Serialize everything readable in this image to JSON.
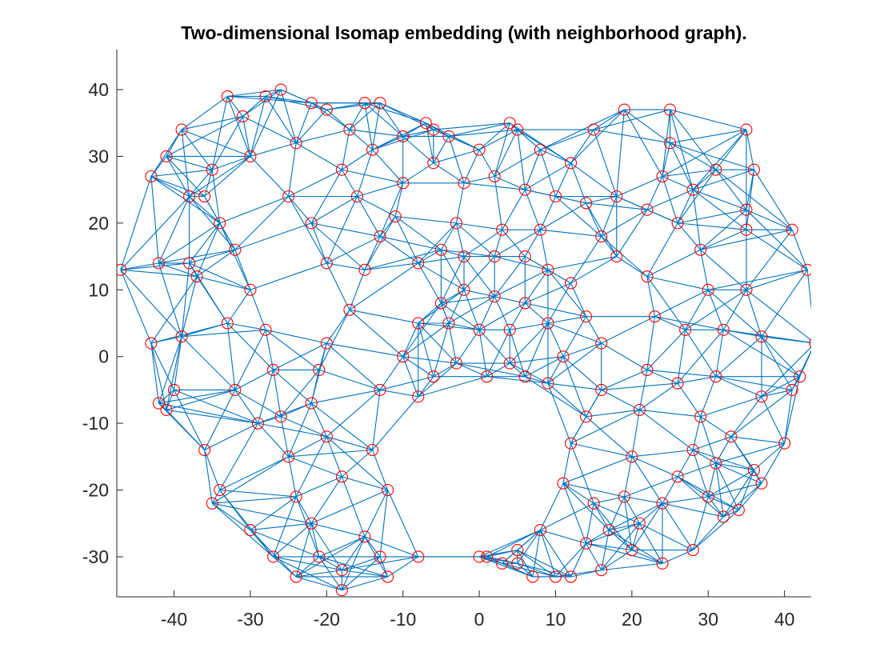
{
  "chart_data": {
    "type": "scatter",
    "title": "Two-dimensional Isomap embedding (with neighborhood graph).",
    "xlim": [
      -47.5,
      43.5
    ],
    "ylim": [
      -36,
      46
    ],
    "x_ticks": [
      -40,
      -30,
      -20,
      -10,
      0,
      10,
      20,
      30,
      40
    ],
    "y_ticks": [
      -30,
      -20,
      -10,
      0,
      10,
      20,
      30,
      40
    ],
    "x_tick_labels": [
      "-40",
      "-30",
      "-20",
      "-10",
      "0",
      "10",
      "20",
      "30",
      "40"
    ],
    "y_tick_labels": [
      "-30",
      "-20",
      "-10",
      "0",
      "10",
      "20",
      "30",
      "40"
    ],
    "grid": false,
    "marker": "open-circle",
    "colors": {
      "points": "#ff0000",
      "edges": "#0072bd",
      "axes": "#262626"
    },
    "neighbors_k": 7,
    "series": [
      {
        "points": [
          [
            -47,
            13
          ],
          [
            -43,
            2
          ],
          [
            -42,
            14
          ],
          [
            -42,
            -7
          ],
          [
            -41,
            -8
          ],
          [
            -40,
            -5
          ],
          [
            -39,
            34
          ],
          [
            -41,
            30
          ],
          [
            -43,
            27
          ],
          [
            -38,
            24
          ],
          [
            -36,
            24
          ],
          [
            -34,
            20
          ],
          [
            -38,
            14
          ],
          [
            -37,
            12
          ],
          [
            -39,
            3
          ],
          [
            -36,
            -14
          ],
          [
            -35,
            -22
          ],
          [
            -34,
            -20
          ],
          [
            -33,
            39
          ],
          [
            -31,
            36
          ],
          [
            -28,
            39
          ],
          [
            -26,
            40
          ],
          [
            -22,
            38
          ],
          [
            -20,
            37
          ],
          [
            -15,
            38
          ],
          [
            -13,
            38
          ],
          [
            -7,
            35
          ],
          [
            -6,
            34
          ],
          [
            4,
            35
          ],
          [
            5,
            34
          ],
          [
            15,
            34
          ],
          [
            19,
            37
          ],
          [
            25,
            37
          ],
          [
            25,
            32
          ],
          [
            35,
            34
          ],
          [
            36,
            28
          ],
          [
            35,
            22
          ],
          [
            35,
            19
          ],
          [
            41,
            19
          ],
          [
            43,
            13
          ],
          [
            44,
            2
          ],
          [
            42,
            -3
          ],
          [
            41,
            -5
          ],
          [
            40,
            -13
          ],
          [
            37,
            -19
          ],
          [
            36,
            -17
          ],
          [
            34,
            -23
          ],
          [
            32,
            -24
          ],
          [
            30,
            -21
          ],
          [
            28,
            -29
          ],
          [
            24,
            -31
          ],
          [
            20,
            -29
          ],
          [
            16,
            -32
          ],
          [
            12,
            -33
          ],
          [
            10,
            -33
          ],
          [
            7,
            -33
          ],
          [
            5,
            -31
          ],
          [
            3,
            -31
          ],
          [
            1,
            -30
          ],
          [
            0,
            -30
          ],
          [
            -8,
            -30
          ],
          [
            -12,
            -33
          ],
          [
            -13,
            -30
          ],
          [
            -18,
            -35
          ],
          [
            -18,
            -32
          ],
          [
            -21,
            -30
          ],
          [
            -24,
            -33
          ],
          [
            -27,
            -30
          ],
          [
            -30,
            -26
          ],
          [
            -15,
            -27
          ],
          [
            -18,
            -18
          ],
          [
            -20,
            -12
          ],
          [
            -22,
            -7
          ],
          [
            -21,
            -2
          ],
          [
            -20,
            2
          ],
          [
            -17,
            7
          ],
          [
            -15,
            13
          ],
          [
            -13,
            18
          ],
          [
            -11,
            21
          ],
          [
            -8,
            14
          ],
          [
            -5,
            16
          ],
          [
            -2,
            15
          ],
          [
            2,
            15
          ],
          [
            6,
            15
          ],
          [
            9,
            13
          ],
          [
            12,
            11
          ],
          [
            14,
            6
          ],
          [
            16,
            2
          ],
          [
            16,
            -5
          ],
          [
            14,
            -9
          ],
          [
            12,
            -13
          ],
          [
            11,
            -19
          ],
          [
            15,
            -22
          ],
          [
            17,
            -26
          ],
          [
            8,
            -26
          ],
          [
            5,
            -29
          ],
          [
            -25,
            24
          ],
          [
            -22,
            20
          ],
          [
            -18,
            28
          ],
          [
            -14,
            31
          ],
          [
            -10,
            26
          ],
          [
            -6,
            29
          ],
          [
            -2,
            26
          ],
          [
            2,
            27
          ],
          [
            6,
            25
          ],
          [
            10,
            24
          ],
          [
            14,
            23
          ],
          [
            18,
            24
          ],
          [
            22,
            22
          ],
          [
            26,
            20
          ],
          [
            29,
            16
          ],
          [
            30,
            10
          ],
          [
            32,
            4
          ],
          [
            31,
            -3
          ],
          [
            29,
            -9
          ],
          [
            28,
            -14
          ],
          [
            26,
            -18
          ],
          [
            24,
            -22
          ],
          [
            21,
            -25
          ],
          [
            19,
            -21
          ],
          [
            20,
            -15
          ],
          [
            21,
            -8
          ],
          [
            22,
            -2
          ],
          [
            23,
            6
          ],
          [
            22,
            12
          ],
          [
            18,
            15
          ],
          [
            24,
            27
          ],
          [
            28,
            25
          ],
          [
            31,
            28
          ],
          [
            12,
            29
          ],
          [
            8,
            31
          ],
          [
            0,
            31
          ],
          [
            -4,
            33
          ],
          [
            -10,
            33
          ],
          [
            -17,
            34
          ],
          [
            -24,
            32
          ],
          [
            -30,
            30
          ],
          [
            -35,
            28
          ],
          [
            -32,
            16
          ],
          [
            -30,
            10
          ],
          [
            -28,
            4
          ],
          [
            -27,
            -2
          ],
          [
            -26,
            -9
          ],
          [
            -25,
            -15
          ],
          [
            -24,
            -21
          ],
          [
            -22,
            -25
          ],
          [
            -29,
            -10
          ],
          [
            -32,
            -5
          ],
          [
            -33,
            5
          ],
          [
            -12,
            -20
          ],
          [
            -14,
            -14
          ],
          [
            -13,
            -5
          ],
          [
            -10,
            0
          ],
          [
            -8,
            5
          ],
          [
            -5,
            8
          ],
          [
            -2,
            10
          ],
          [
            2,
            9
          ],
          [
            6,
            8
          ],
          [
            9,
            5
          ],
          [
            11,
            0
          ],
          [
            9,
            -4
          ],
          [
            6,
            -3
          ],
          [
            4,
            -1
          ],
          [
            1,
            -3
          ],
          [
            -3,
            -1
          ],
          [
            -6,
            -3
          ],
          [
            -8,
            -6
          ],
          [
            -4,
            5
          ],
          [
            0,
            4
          ],
          [
            4,
            4
          ],
          [
            -16,
            24
          ],
          [
            -20,
            14
          ],
          [
            16,
            18
          ],
          [
            27,
            4
          ],
          [
            26,
            -4
          ],
          [
            35,
            10
          ],
          [
            37,
            3
          ],
          [
            37,
            -6
          ],
          [
            33,
            -12
          ],
          [
            31,
            -16
          ],
          [
            14,
            -28
          ],
          [
            -3,
            20
          ],
          [
            3,
            19
          ],
          [
            8,
            19
          ]
        ]
      }
    ]
  }
}
